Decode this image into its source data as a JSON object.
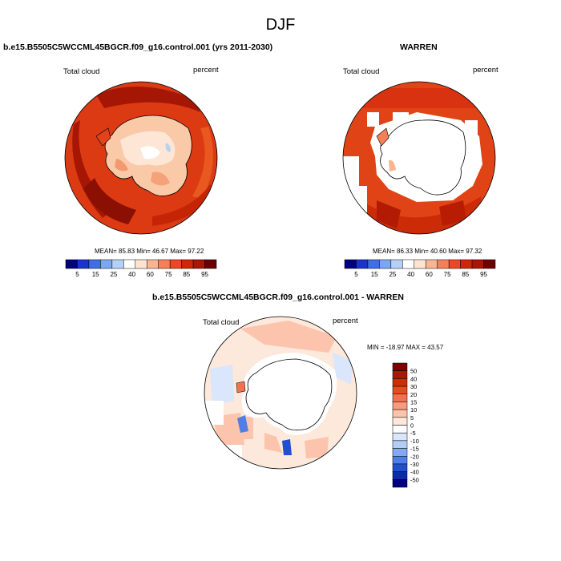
{
  "figure": {
    "title": "DJF"
  },
  "panels": [
    {
      "name": "model",
      "title": "b.e15.B5505C5WCCML45BGCR.f09_g16.control.001 (yrs 2011-2030)",
      "left_label": "Total cloud",
      "right_label": "percent",
      "stats": "MEAN=  85.83  Min=  46.67  Max=  97.22"
    },
    {
      "name": "warren",
      "title": "WARREN",
      "left_label": "Total cloud",
      "right_label": "percent",
      "stats": "MEAN=  86.33  Min=  40.60  Max=  97.32"
    },
    {
      "name": "difference",
      "title": "b.e15.B5505C5WCCML45BGCR.f09_g16.control.001 - WARREN",
      "left_label": "Total cloud",
      "right_label": "percent",
      "stats": "MIN = -18.97 MAX =  43.57"
    }
  ],
  "colorbar_abs": {
    "labels": [
      "5",
      "15",
      "25",
      "40",
      "60",
      "75",
      "85",
      "95"
    ],
    "colors": [
      "#000080",
      "#1a33c8",
      "#3f6ee6",
      "#7aa7f2",
      "#b5d0f7",
      "#ffffff",
      "#fde3d0",
      "#f9b592",
      "#f48058",
      "#ea4a22",
      "#cd2806",
      "#a61705",
      "#6b0000"
    ]
  },
  "colorbar_diff": {
    "labels": [
      "50",
      "40",
      "30",
      "20",
      "15",
      "10",
      "5",
      "0",
      "-5",
      "-10",
      "-15",
      "-20",
      "-30",
      "-40",
      "-50"
    ],
    "colors": [
      "#800000",
      "#a51a06",
      "#cc2d0b",
      "#e94a1e",
      "#f37050",
      "#f89a7c",
      "#fcc4ac",
      "#fde8dc",
      "#ffffff",
      "#d9e6fb",
      "#b4cdf7",
      "#82a9f1",
      "#4f7fe6",
      "#2050d0",
      "#0a2ca8",
      "#000080"
    ]
  }
}
